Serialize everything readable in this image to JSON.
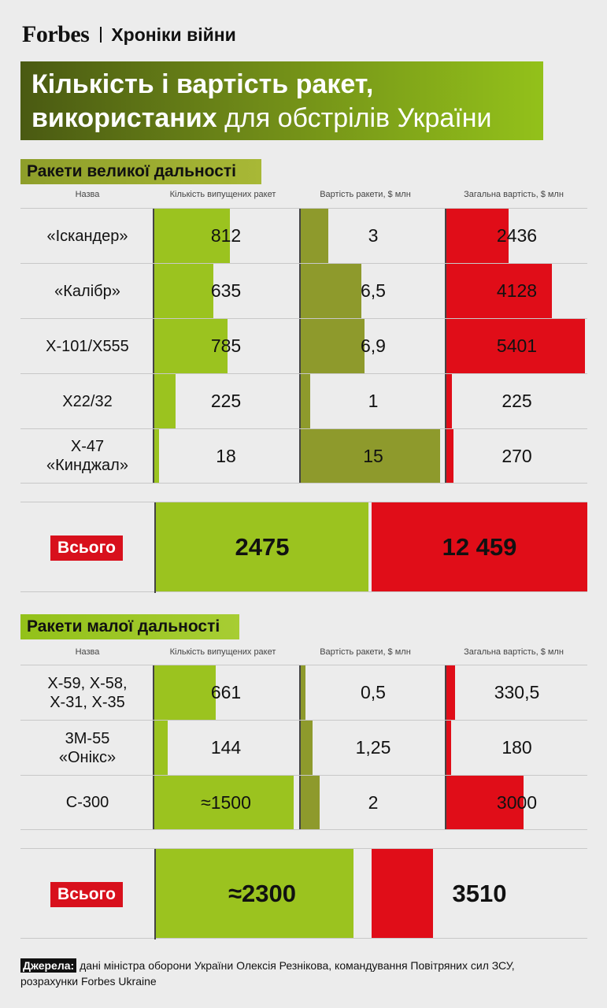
{
  "header": {
    "logo": "Forbes",
    "rubric": "Хроніки війни"
  },
  "title": {
    "line1": "Кількість і вартість ракет,",
    "line2_bold": "використаних",
    "line2_rest": " для обстрілів України"
  },
  "columns": {
    "name": "Назва",
    "qty": "Кількість випущених ракет",
    "price": "Вартість ракети, $ млн",
    "total": "Загальна вартість, $ млн"
  },
  "total_label": "Всього",
  "colors": {
    "qty": "#9bc31f",
    "price": "#8e9a2c",
    "total": "#e00d18",
    "title_from": "#4a5a12",
    "title_to": "#93c11a"
  },
  "chart_data": [
    {
      "type": "table",
      "title": "Ракети великої дальності",
      "rows": [
        {
          "name": "«Іскандер»",
          "qty": "812",
          "qty_value": 812,
          "price": "3",
          "price_value": 3,
          "total": "2436",
          "total_value": 2436
        },
        {
          "name": "«Калібр»",
          "qty": "635",
          "qty_value": 635,
          "price": "6,5",
          "price_value": 6.5,
          "total": "4128",
          "total_value": 4128
        },
        {
          "name": "Х-101/Х555",
          "qty": "785",
          "qty_value": 785,
          "price": "6,9",
          "price_value": 6.9,
          "total": "5401",
          "total_value": 5401
        },
        {
          "name": "Х22/32",
          "qty": "225",
          "qty_value": 225,
          "price": "1",
          "price_value": 1,
          "total": "225",
          "total_value": 225
        },
        {
          "name": "Х-47\n«Кинджал»",
          "qty": "18",
          "qty_value": 18,
          "price": "15",
          "price_value": 15,
          "total": "270",
          "total_value": 270
        }
      ],
      "totals": {
        "qty": "2475",
        "qty_value": 2475,
        "total": "12 459",
        "total_value": 12459
      }
    },
    {
      "type": "table",
      "title": "Ракети малої дальності",
      "rows": [
        {
          "name": "Х-59, Х-58,\nХ-31, Х-35",
          "qty": "661",
          "qty_value": 661,
          "price": "0,5",
          "price_value": 0.5,
          "total": "330,5",
          "total_value": 330.5
        },
        {
          "name": "3М-55\n«Онікс»",
          "qty": "144",
          "qty_value": 144,
          "price": "1,25",
          "price_value": 1.25,
          "total": "180",
          "total_value": 180
        },
        {
          "name": "С-300",
          "qty": "≈1500",
          "qty_value": 1500,
          "price": "2",
          "price_value": 2,
          "total": "3000",
          "total_value": 3000
        }
      ],
      "totals": {
        "qty": "≈2300",
        "qty_value": 2300,
        "total": "3510",
        "total_value": 3510
      }
    }
  ],
  "footer": {
    "source_label": "Джерела:",
    "source_text": " дані міністра оборони України Олексія Резнікова, командування Повітряних сил ЗСУ, розрахунки Forbes Ukraine"
  }
}
